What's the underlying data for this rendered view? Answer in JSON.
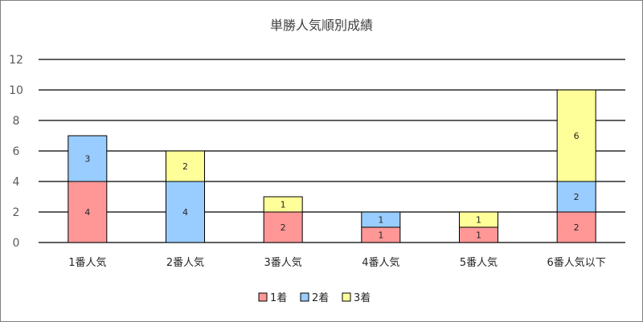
{
  "chart_data": {
    "type": "bar",
    "stacked": true,
    "title": "単勝人気順別成績",
    "categories": [
      "1番人気",
      "2番人気",
      "3番人気",
      "4番人気",
      "5番人気",
      "6番人気以下"
    ],
    "series": [
      {
        "name": "1着",
        "color": "#ff9797",
        "values": [
          4,
          0,
          2,
          1,
          1,
          2
        ]
      },
      {
        "name": "2着",
        "color": "#99ccff",
        "values": [
          3,
          4,
          0,
          1,
          0,
          2
        ]
      },
      {
        "name": "3着",
        "color": "#ffff99",
        "values": [
          0,
          2,
          1,
          0,
          1,
          6
        ]
      }
    ],
    "ylim": [
      0,
      12
    ],
    "yticks": [
      0,
      2,
      4,
      6,
      8,
      10,
      12
    ],
    "grid": true,
    "legend": "bottom",
    "xlabel": "",
    "ylabel": ""
  }
}
